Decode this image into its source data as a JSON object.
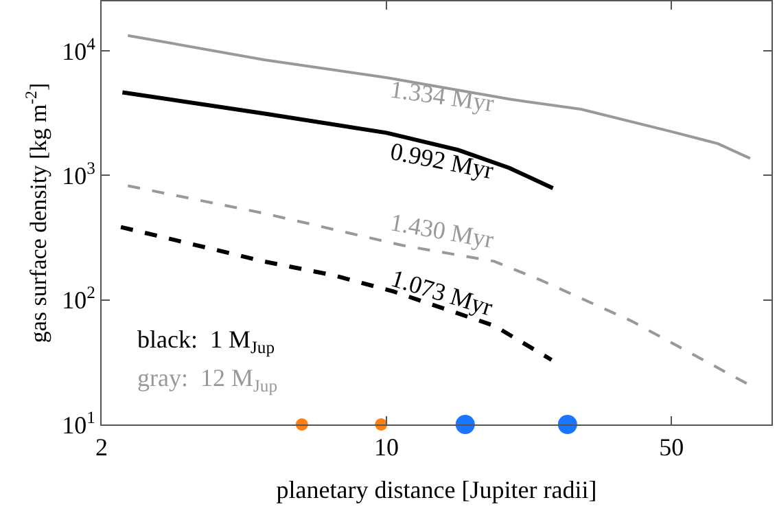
{
  "chart_data": {
    "type": "line",
    "xlabel": "planetary distance [Jupiter radii]",
    "ylabel": "gas surface density [kg m$^{-2}$]",
    "log": "xy",
    "xlim": [
      2,
      88
    ],
    "xticks": [
      2,
      10,
      50
    ],
    "ylim": [
      10,
      25000
    ],
    "yticks": [
      {
        "value": 10,
        "label": "10$^{1}$"
      },
      {
        "value": 100,
        "label": "10$^{2}$"
      },
      {
        "value": 1000,
        "label": "10$^{3}$"
      },
      {
        "value": 10000,
        "label": "10$^{4}$"
      }
    ],
    "series": [
      {
        "color": "#999999",
        "line_style": "solid",
        "x": [
          2.32,
          5,
          10,
          20,
          30,
          50,
          65,
          78
        ],
        "values": [
          13300,
          8500,
          6100,
          4100,
          3400,
          2250,
          1800,
          1370
        ]
      },
      {
        "color": "#000000",
        "line_style": "solid",
        "x": [
          2.25,
          5,
          10,
          15,
          20,
          25.6
        ],
        "values": [
          4650,
          3140,
          2200,
          1600,
          1150,
          790
        ]
      },
      {
        "color": "#999999",
        "line_style": "dashed",
        "x": [
          2.32,
          5,
          10.9,
          18.4,
          23.8,
          39.8,
          78
        ],
        "values": [
          826,
          497,
          275,
          204,
          145,
          68,
          20.6
        ]
      },
      {
        "color": "#000000",
        "line_style": "dashed",
        "x": [
          2.23,
          5,
          7.4,
          10.4,
          18.4,
          25.4
        ],
        "values": [
          385,
          204,
          158,
          117,
          62,
          33
        ]
      },
      {
        "type": "scatter",
        "marker": "circle",
        "color": "#ff7f0e",
        "x": [
          6.2,
          9.7
        ],
        "values": [
          10,
          10
        ]
      },
      {
        "type": "scatter",
        "marker": "circle",
        "color": "#1a75ff",
        "x": [
          15.6,
          27.8
        ],
        "values": [
          10,
          10
        ]
      }
    ],
    "annotations": [
      "1.334 Myr",
      "0.992 Myr",
      "1.430 Myr",
      "1.073 Myr",
      "black:  1 M$_{Jup}$",
      "gray:  12 M$_{Jup}$"
    ]
  }
}
